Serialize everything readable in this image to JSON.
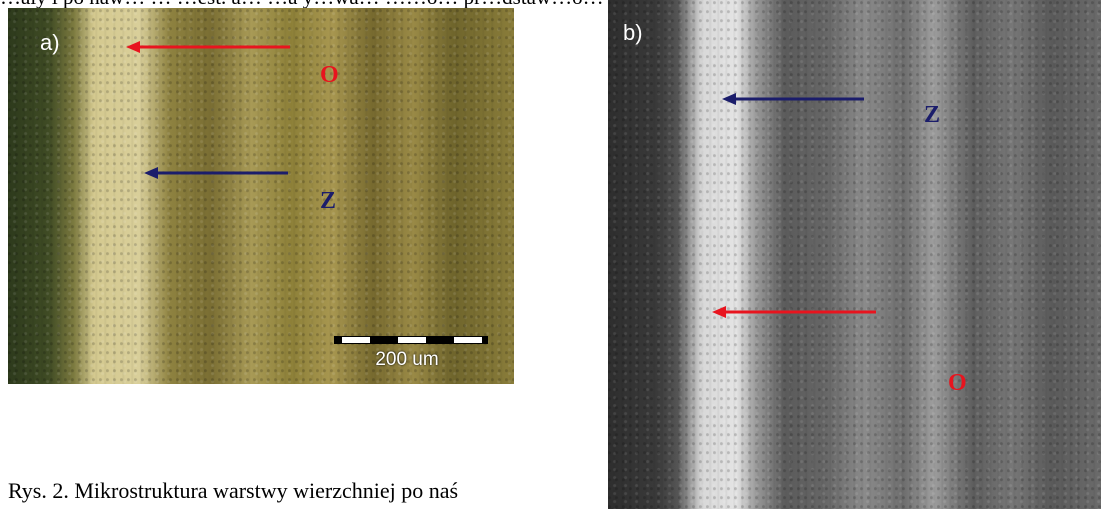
{
  "page": {
    "top_line": "…ały i po naw… … …est. a… …a y…wa… ……o… pr…dstaw…o… …a y…… …at… …. …",
    "caption": "Rys. 2. Mikrostruktura warstwy wierzchniej po naś"
  },
  "panel_a": {
    "label": "a)",
    "marker_o": "O",
    "marker_z": "Z",
    "scale_label": "200 um"
  },
  "panel_b": {
    "label": "b)",
    "marker_o": "O",
    "marker_z": "Z"
  },
  "colors": {
    "arrow_red": "#e8141e",
    "arrow_blue": "#1b1d6b"
  }
}
